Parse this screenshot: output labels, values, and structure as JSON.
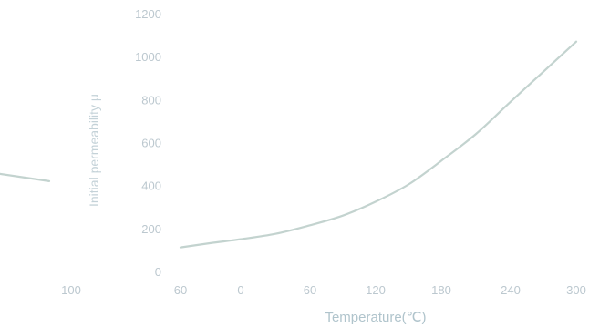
{
  "chart_data": {
    "type": "line",
    "title": "",
    "xlabel": "Temperature(℃)",
    "ylabel": "Initial permeability μ",
    "x_ticks": [
      -100,
      -60,
      0,
      60,
      120,
      180,
      240,
      300
    ],
    "x_tick_labels": [
      "100",
      "60",
      "0",
      "60",
      "120",
      "180",
      "240",
      "300"
    ],
    "y_ticks": [
      0,
      200,
      400,
      600,
      800,
      1000,
      1200
    ],
    "y_tick_labels": [
      "0",
      "200",
      "400",
      "600",
      "800",
      "1000",
      "1200"
    ],
    "ylim": [
      0,
      1200
    ],
    "grid": false,
    "legend": "none",
    "line_color": "#c3d3cf",
    "series": [
      {
        "segments": [
          [
            [
              -146,
              492
            ],
            [
              -108,
              420
            ]
          ],
          [
            [
              -60,
              112
            ],
            [
              -30,
              132
            ],
            [
              0,
              150
            ],
            [
              30,
              175
            ],
            [
              60,
              215
            ],
            [
              90,
              260
            ],
            [
              120,
              325
            ],
            [
              150,
              405
            ],
            [
              180,
              515
            ],
            [
              210,
              640
            ],
            [
              240,
              790
            ],
            [
              270,
              930
            ],
            [
              300,
              1070
            ]
          ]
        ]
      }
    ]
  }
}
